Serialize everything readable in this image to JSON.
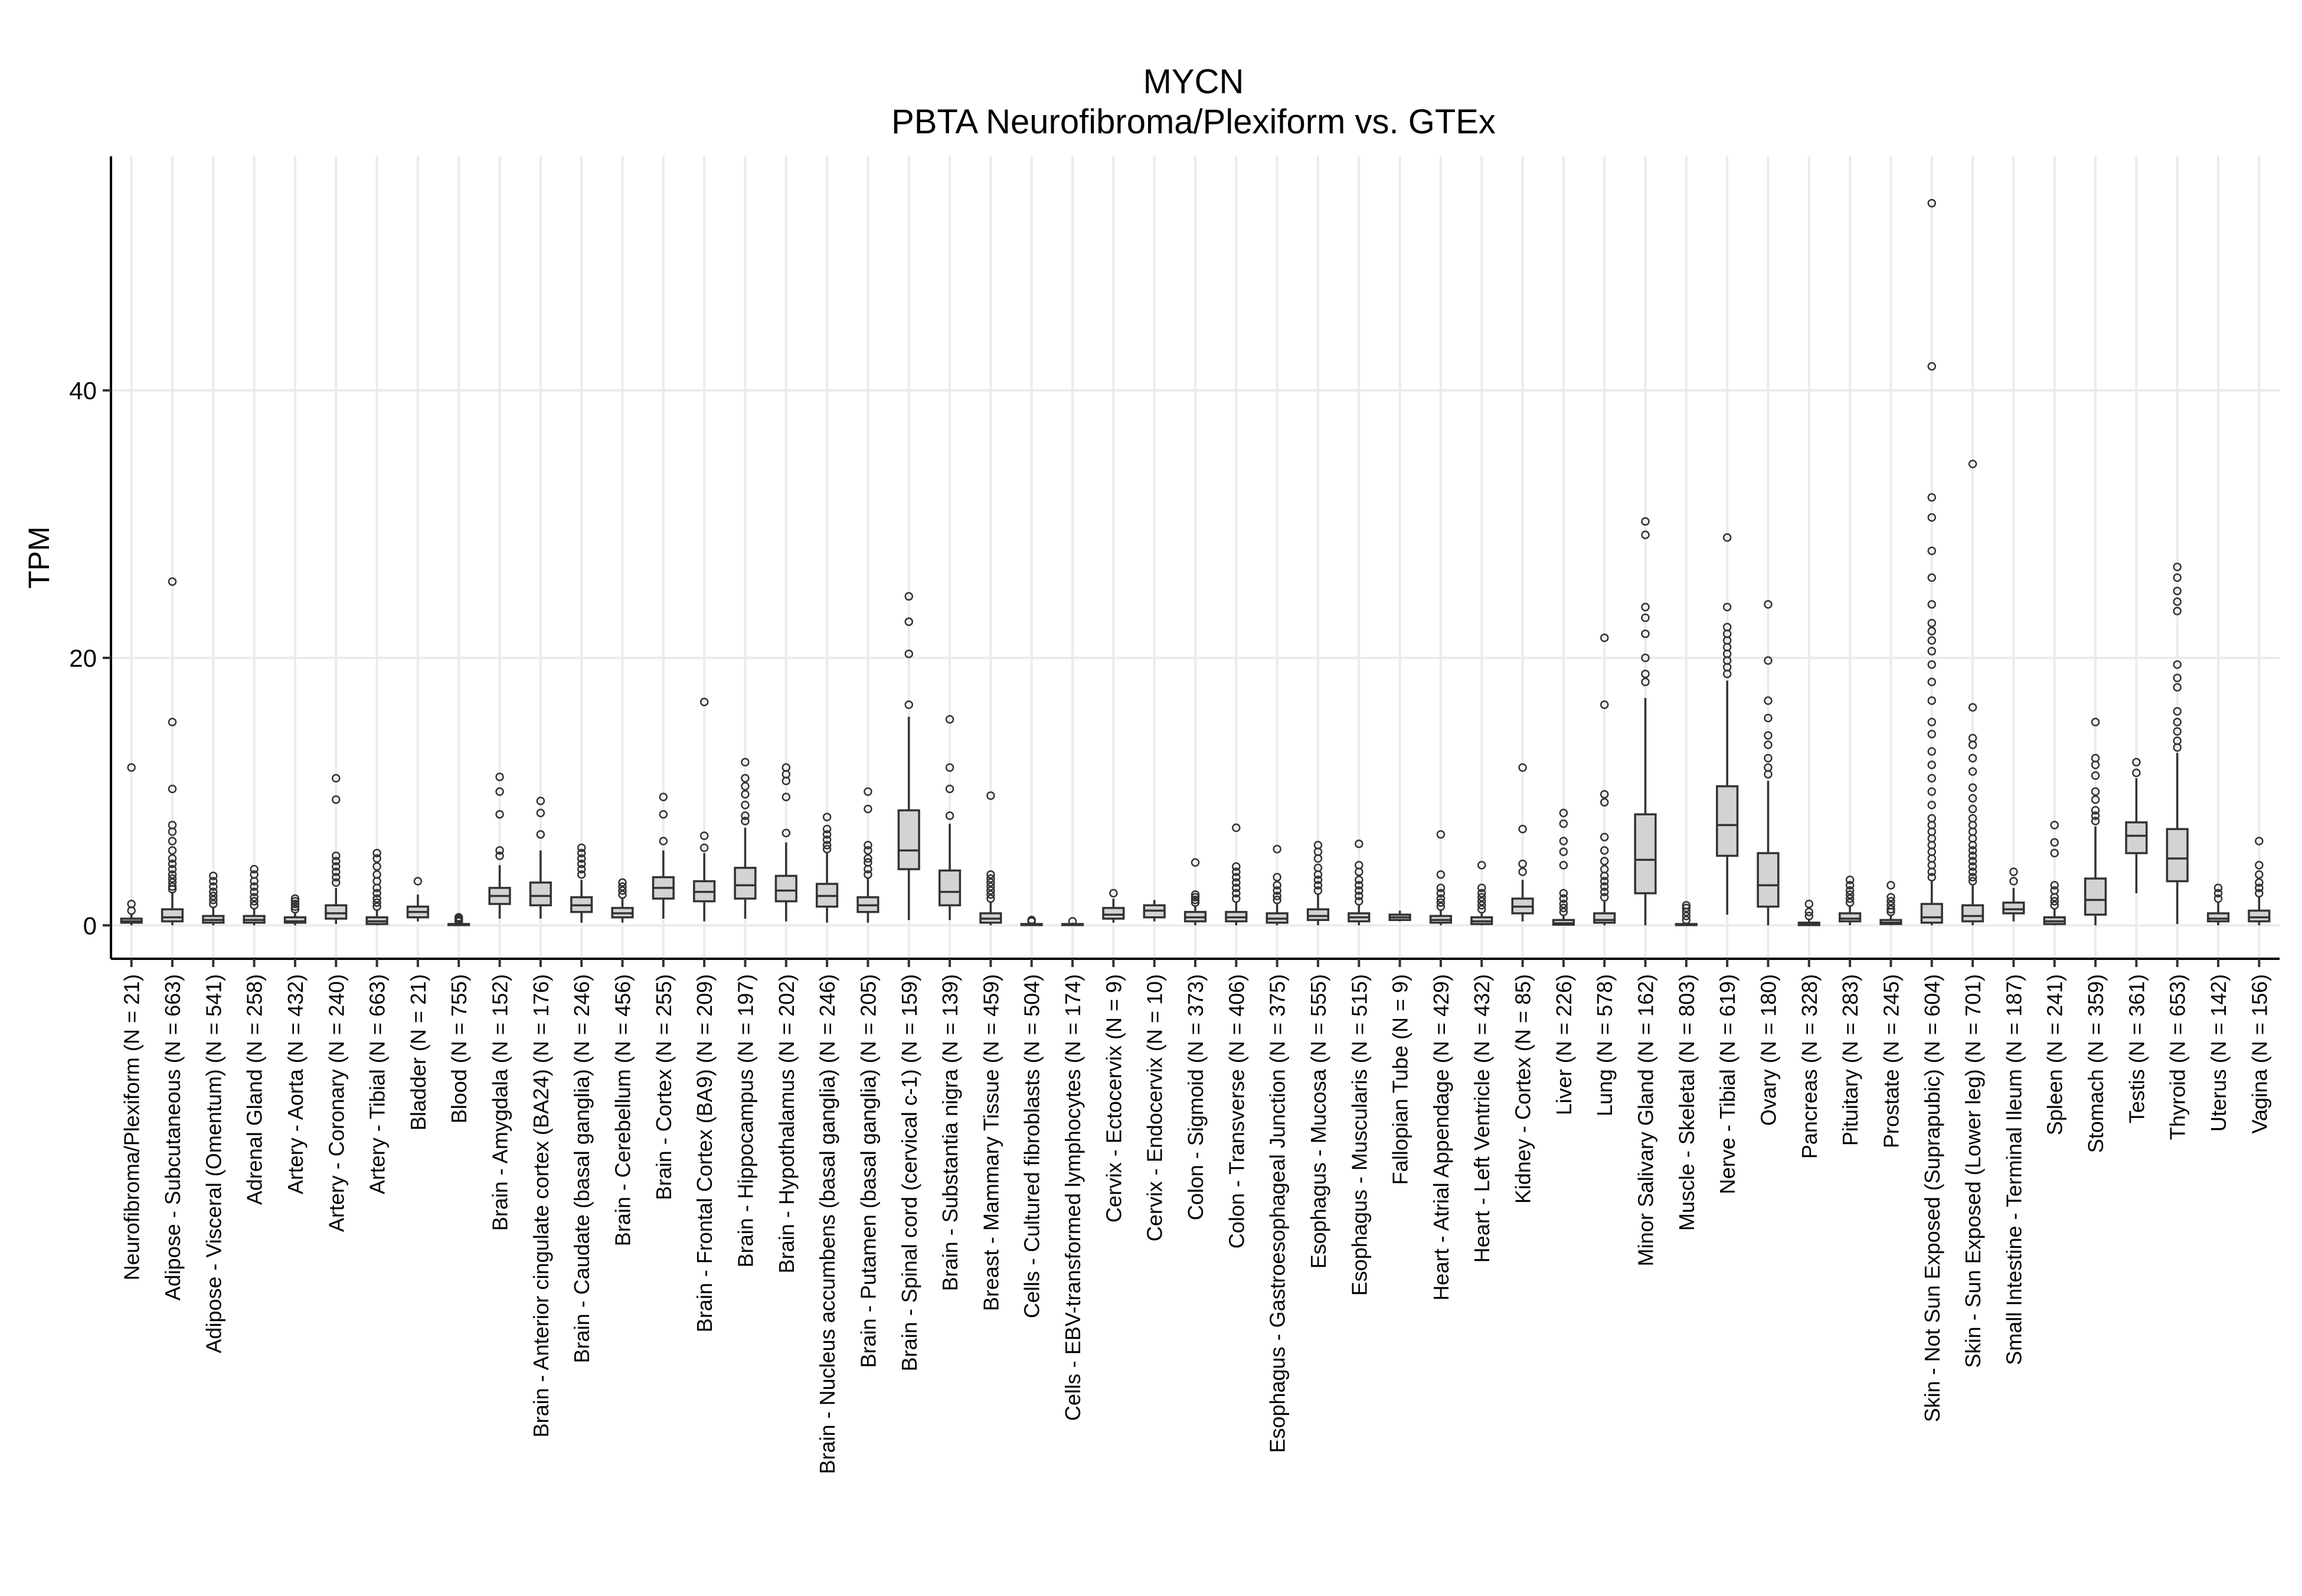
{
  "chart_data": {
    "type": "box",
    "title": "MYCN",
    "subtitle": "PBTA Neurofibroma/Plexiform vs. GTEx",
    "xlabel": "",
    "ylabel": "TPM",
    "ylim": [
      -2.5,
      57.5
    ],
    "yticks": [
      0,
      20,
      40
    ],
    "grid": true,
    "legend": "none",
    "box_fill": "#d3d3d3",
    "line_color": "#333333",
    "grid_color": "#ebebeb",
    "categories": [
      "Neurofibroma/Plexiform (N = 21)",
      "Adipose - Subcutaneous (N = 663)",
      "Adipose - Visceral (Omentum) (N = 541)",
      "Adrenal Gland (N = 258)",
      "Artery - Aorta (N = 432)",
      "Artery - Coronary (N = 240)",
      "Artery - Tibial (N = 663)",
      "Bladder (N = 21)",
      "Blood (N = 755)",
      "Brain - Amygdala (N = 152)",
      "Brain - Anterior cingulate cortex (BA24) (N = 176)",
      "Brain - Caudate (basal ganglia) (N = 246)",
      "Brain - Cerebellum (N = 456)",
      "Brain - Cortex (N = 255)",
      "Brain - Frontal Cortex (BA9) (N = 209)",
      "Brain - Hippocampus (N = 197)",
      "Brain - Hypothalamus (N = 202)",
      "Brain - Nucleus accumbens (basal ganglia) (N = 246)",
      "Brain - Putamen (basal ganglia) (N = 205)",
      "Brain - Spinal cord (cervical c-1) (N = 159)",
      "Brain - Substantia nigra (N = 139)",
      "Breast - Mammary Tissue (N = 459)",
      "Cells - Cultured fibroblasts (N = 504)",
      "Cells - EBV-transformed lymphocytes (N = 174)",
      "Cervix - Ectocervix (N = 9)",
      "Cervix - Endocervix (N = 10)",
      "Colon - Sigmoid (N = 373)",
      "Colon - Transverse (N = 406)",
      "Esophagus - Gastroesophageal Junction (N = 375)",
      "Esophagus - Mucosa (N = 555)",
      "Esophagus - Muscularis (N = 515)",
      "Fallopian Tube (N = 9)",
      "Heart - Atrial Appendage (N = 429)",
      "Heart - Left Ventricle (N = 432)",
      "Kidney - Cortex (N = 85)",
      "Liver (N = 226)",
      "Lung (N = 578)",
      "Minor Salivary Gland (N = 162)",
      "Muscle - Skeletal (N = 803)",
      "Nerve - Tibial (N = 619)",
      "Ovary (N = 180)",
      "Pancreas (N = 328)",
      "Pituitary (N = 283)",
      "Prostate (N = 245)",
      "Skin - Not Sun Exposed (Suprapubic) (N = 604)",
      "Skin - Sun Exposed (Lower leg) (N = 701)",
      "Small Intestine - Terminal Ileum (N = 187)",
      "Spleen (N = 241)",
      "Stomach (N = 359)",
      "Testis (N = 361)",
      "Thyroid (N = 653)",
      "Uterus (N = 142)",
      "Vagina (N = 156)"
    ],
    "boxes": [
      {
        "min": 0.0,
        "q1": 0.2,
        "median": 0.3,
        "q3": 0.5,
        "max": 0.9,
        "outliers": [
          1.1,
          1.6,
          11.8
        ]
      },
      {
        "min": 0.0,
        "q1": 0.3,
        "median": 0.6,
        "q3": 1.2,
        "max": 2.5,
        "outliers": [
          2.7,
          2.9,
          3.2,
          3.5,
          3.8,
          4.2,
          4.6,
          5.0,
          5.6,
          6.3,
          7.0,
          7.5,
          10.2,
          15.2,
          25.7
        ]
      },
      {
        "min": 0.0,
        "q1": 0.2,
        "median": 0.4,
        "q3": 0.7,
        "max": 1.4,
        "outliers": [
          1.6,
          1.9,
          2.2,
          2.5,
          2.9,
          3.3,
          3.7
        ]
      },
      {
        "min": 0.0,
        "q1": 0.2,
        "median": 0.4,
        "q3": 0.7,
        "max": 1.3,
        "outliers": [
          1.5,
          1.8,
          2.1,
          2.5,
          2.9,
          3.3,
          3.8,
          4.2
        ]
      },
      {
        "min": 0.0,
        "q1": 0.2,
        "median": 0.3,
        "q3": 0.6,
        "max": 1.0,
        "outliers": [
          1.2,
          1.4,
          1.6,
          1.8,
          2.0
        ]
      },
      {
        "min": 0.1,
        "q1": 0.5,
        "median": 0.9,
        "q3": 1.5,
        "max": 2.8,
        "outliers": [
          3.2,
          3.6,
          4.0,
          4.4,
          4.8,
          5.2,
          9.4,
          11.0
        ]
      },
      {
        "min": 0.0,
        "q1": 0.1,
        "median": 0.3,
        "q3": 0.6,
        "max": 1.2,
        "outliers": [
          1.4,
          1.7,
          2.0,
          2.4,
          2.8,
          3.3,
          3.8,
          4.4,
          5.0,
          5.4
        ]
      },
      {
        "min": 0.3,
        "q1": 0.6,
        "median": 1.0,
        "q3": 1.4,
        "max": 2.3,
        "outliers": [
          3.3
        ]
      },
      {
        "min": 0.0,
        "q1": 0.02,
        "median": 0.05,
        "q3": 0.1,
        "max": 0.2,
        "outliers": [
          0.3,
          0.4,
          0.5,
          0.6
        ]
      },
      {
        "min": 0.5,
        "q1": 1.6,
        "median": 2.2,
        "q3": 2.8,
        "max": 4.5,
        "outliers": [
          5.2,
          5.6,
          8.3,
          10.0,
          11.1
        ]
      },
      {
        "min": 0.5,
        "q1": 1.5,
        "median": 2.2,
        "q3": 3.2,
        "max": 5.6,
        "outliers": [
          6.8,
          8.4,
          9.3
        ]
      },
      {
        "min": 0.2,
        "q1": 1.0,
        "median": 1.5,
        "q3": 2.1,
        "max": 3.4,
        "outliers": [
          3.8,
          4.2,
          4.6,
          5.0,
          5.4,
          5.8
        ]
      },
      {
        "min": 0.2,
        "q1": 0.6,
        "median": 0.9,
        "q3": 1.3,
        "max": 2.0,
        "outliers": [
          2.3,
          2.6,
          2.9,
          3.2
        ]
      },
      {
        "min": 0.5,
        "q1": 2.0,
        "median": 2.8,
        "q3": 3.6,
        "max": 5.6,
        "outliers": [
          6.3,
          8.3,
          9.6
        ]
      },
      {
        "min": 0.3,
        "q1": 1.8,
        "median": 2.5,
        "q3": 3.3,
        "max": 5.4,
        "outliers": [
          5.8,
          6.7,
          16.7
        ]
      },
      {
        "min": 0.5,
        "q1": 2.0,
        "median": 3.0,
        "q3": 4.3,
        "max": 7.3,
        "outliers": [
          7.8,
          8.2,
          9.0,
          9.8,
          10.4,
          11.0,
          12.2
        ]
      },
      {
        "min": 0.3,
        "q1": 1.8,
        "median": 2.6,
        "q3": 3.7,
        "max": 6.2,
        "outliers": [
          6.9,
          9.6,
          10.8,
          11.3,
          11.8
        ]
      },
      {
        "min": 0.2,
        "q1": 1.4,
        "median": 2.2,
        "q3": 3.1,
        "max": 5.4,
        "outliers": [
          5.7,
          6.0,
          6.4,
          6.8,
          7.2,
          8.1
        ]
      },
      {
        "min": 0.2,
        "q1": 1.0,
        "median": 1.5,
        "q3": 2.1,
        "max": 3.5,
        "outliers": [
          3.8,
          4.2,
          4.7,
          5.0,
          5.6,
          6.0,
          8.7,
          10.0
        ]
      },
      {
        "min": 0.4,
        "q1": 4.2,
        "median": 5.6,
        "q3": 8.6,
        "max": 15.6,
        "outliers": [
          16.5,
          20.3,
          22.7,
          24.6
        ]
      },
      {
        "min": 0.4,
        "q1": 1.5,
        "median": 2.5,
        "q3": 4.1,
        "max": 7.6,
        "outliers": [
          8.2,
          10.2,
          11.8,
          15.4
        ]
      },
      {
        "min": 0.0,
        "q1": 0.2,
        "median": 0.5,
        "q3": 0.9,
        "max": 1.8,
        "outliers": [
          2.0,
          2.3,
          2.6,
          2.9,
          3.2,
          3.5,
          3.8,
          9.7
        ]
      },
      {
        "min": 0.0,
        "q1": 0.02,
        "median": 0.05,
        "q3": 0.1,
        "max": 0.2,
        "outliers": [
          0.3,
          0.4
        ]
      },
      {
        "min": 0.0,
        "q1": 0.02,
        "median": 0.05,
        "q3": 0.1,
        "max": 0.2,
        "outliers": [
          0.3
        ]
      },
      {
        "min": 0.2,
        "q1": 0.5,
        "median": 0.8,
        "q3": 1.3,
        "max": 2.0,
        "outliers": [
          2.4
        ]
      },
      {
        "min": 0.3,
        "q1": 0.6,
        "median": 1.1,
        "q3": 1.5,
        "max": 1.9,
        "outliers": []
      },
      {
        "min": 0.0,
        "q1": 0.3,
        "median": 0.6,
        "q3": 1.0,
        "max": 1.5,
        "outliers": [
          1.7,
          1.9,
          2.1,
          2.3,
          4.7
        ]
      },
      {
        "min": 0.0,
        "q1": 0.3,
        "median": 0.6,
        "q3": 1.0,
        "max": 1.7,
        "outliers": [
          2.0,
          2.4,
          2.8,
          3.2,
          3.6,
          4.0,
          4.4,
          7.3
        ]
      },
      {
        "min": 0.0,
        "q1": 0.2,
        "median": 0.5,
        "q3": 0.9,
        "max": 1.6,
        "outliers": [
          1.9,
          2.2,
          2.6,
          3.0,
          3.6,
          5.7
        ]
      },
      {
        "min": 0.0,
        "q1": 0.4,
        "median": 0.7,
        "q3": 1.2,
        "max": 2.3,
        "outliers": [
          2.6,
          3.0,
          3.4,
          3.8,
          4.3,
          5.0,
          5.5,
          6.0
        ]
      },
      {
        "min": 0.0,
        "q1": 0.3,
        "median": 0.6,
        "q3": 0.9,
        "max": 1.5,
        "outliers": [
          1.8,
          2.2,
          2.6,
          3.0,
          3.4,
          4.0,
          4.5,
          6.1
        ]
      },
      {
        "min": 0.3,
        "q1": 0.4,
        "median": 0.6,
        "q3": 0.8,
        "max": 1.1,
        "outliers": []
      },
      {
        "min": 0.0,
        "q1": 0.2,
        "median": 0.4,
        "q3": 0.7,
        "max": 1.2,
        "outliers": [
          1.4,
          1.7,
          2.0,
          2.4,
          2.8,
          3.8,
          6.8
        ]
      },
      {
        "min": 0.0,
        "q1": 0.1,
        "median": 0.3,
        "q3": 0.6,
        "max": 1.0,
        "outliers": [
          1.2,
          1.5,
          1.8,
          2.1,
          2.4,
          2.8,
          4.5
        ]
      },
      {
        "min": 0.3,
        "q1": 0.9,
        "median": 1.4,
        "q3": 2.0,
        "max": 3.4,
        "outliers": [
          4.0,
          4.6,
          7.2,
          11.8
        ]
      },
      {
        "min": 0.0,
        "q1": 0.05,
        "median": 0.15,
        "q3": 0.4,
        "max": 0.8,
        "outliers": [
          1.0,
          1.3,
          1.6,
          2.0,
          2.4,
          4.5,
          5.5,
          6.3,
          7.6,
          8.4
        ]
      },
      {
        "min": 0.0,
        "q1": 0.2,
        "median": 0.4,
        "q3": 0.9,
        "max": 1.8,
        "outliers": [
          2.1,
          2.5,
          2.9,
          3.3,
          3.7,
          4.2,
          4.8,
          5.6,
          6.6,
          9.2,
          9.8,
          16.5,
          21.5
        ]
      },
      {
        "min": 0.0,
        "q1": 2.4,
        "median": 4.9,
        "q3": 8.3,
        "max": 17.0,
        "outliers": [
          18.2,
          18.8,
          20.0,
          21.8,
          23.0,
          23.8,
          29.2,
          30.2
        ]
      },
      {
        "min": 0.0,
        "q1": 0.02,
        "median": 0.05,
        "q3": 0.1,
        "max": 0.2,
        "outliers": [
          0.4,
          0.7,
          1.0,
          1.3,
          1.5
        ]
      },
      {
        "min": 0.8,
        "q1": 5.2,
        "median": 7.5,
        "q3": 10.4,
        "max": 18.3,
        "outliers": [
          18.8,
          19.3,
          19.8,
          20.3,
          20.8,
          21.3,
          21.8,
          22.3,
          23.8,
          29.0
        ]
      },
      {
        "min": 0.0,
        "q1": 1.4,
        "median": 3.0,
        "q3": 5.4,
        "max": 10.8,
        "outliers": [
          11.3,
          11.8,
          12.5,
          13.5,
          14.2,
          15.5,
          16.8,
          19.8,
          24.0
        ]
      },
      {
        "min": 0.0,
        "q1": 0.02,
        "median": 0.08,
        "q3": 0.2,
        "max": 0.5,
        "outliers": [
          0.7,
          1.0,
          1.6
        ]
      },
      {
        "min": 0.0,
        "q1": 0.3,
        "median": 0.5,
        "q3": 0.9,
        "max": 1.5,
        "outliers": [
          1.7,
          2.0,
          2.3,
          2.6,
          3.0,
          3.4
        ]
      },
      {
        "min": 0.0,
        "q1": 0.1,
        "median": 0.2,
        "q3": 0.4,
        "max": 0.8,
        "outliers": [
          1.0,
          1.2,
          1.5,
          1.8,
          2.1,
          3.0
        ]
      },
      {
        "min": 0.0,
        "q1": 0.2,
        "median": 0.6,
        "q3": 1.6,
        "max": 3.3,
        "outliers": [
          3.6,
          4.0,
          4.5,
          5.0,
          5.5,
          6.0,
          6.5,
          7.0,
          7.5,
          8.0,
          9.0,
          10.0,
          11.0,
          12.0,
          13.0,
          14.3,
          15.2,
          16.8,
          18.2,
          19.5,
          20.5,
          21.3,
          22.0,
          22.6,
          24.0,
          26.0,
          28.0,
          30.5,
          32.0,
          41.8,
          54.0
        ]
      },
      {
        "min": 0.0,
        "q1": 0.3,
        "median": 0.7,
        "q3": 1.5,
        "max": 3.0,
        "outliers": [
          3.3,
          3.6,
          4.0,
          4.4,
          4.8,
          5.2,
          5.6,
          6.0,
          6.5,
          7.0,
          7.5,
          8.0,
          8.7,
          9.5,
          10.3,
          11.5,
          12.5,
          13.5,
          14.0,
          16.3,
          34.5
        ]
      },
      {
        "min": 0.3,
        "q1": 0.9,
        "median": 1.2,
        "q3": 1.7,
        "max": 2.8,
        "outliers": [
          3.3,
          4.0
        ]
      },
      {
        "min": 0.0,
        "q1": 0.1,
        "median": 0.3,
        "q3": 0.6,
        "max": 1.2,
        "outliers": [
          1.5,
          1.8,
          2.1,
          2.6,
          3.0,
          5.4,
          6.2,
          7.5
        ]
      },
      {
        "min": 0.0,
        "q1": 0.8,
        "median": 1.9,
        "q3": 3.5,
        "max": 7.4,
        "outliers": [
          7.8,
          8.2,
          8.6,
          9.4,
          10.0,
          11.2,
          12.0,
          12.5,
          15.2
        ]
      },
      {
        "min": 2.4,
        "q1": 5.4,
        "median": 6.7,
        "q3": 7.7,
        "max": 11.0,
        "outliers": [
          11.4,
          12.2
        ]
      },
      {
        "min": 0.1,
        "q1": 3.3,
        "median": 5.0,
        "q3": 7.2,
        "max": 12.9,
        "outliers": [
          13.3,
          13.8,
          14.5,
          15.2,
          16.0,
          17.8,
          18.5,
          19.5,
          23.5,
          24.2,
          25.0,
          26.0,
          26.8
        ]
      },
      {
        "min": 0.0,
        "q1": 0.3,
        "median": 0.5,
        "q3": 0.9,
        "max": 1.7,
        "outliers": [
          2.0,
          2.4,
          2.8
        ]
      },
      {
        "min": 0.0,
        "q1": 0.3,
        "median": 0.6,
        "q3": 1.1,
        "max": 2.1,
        "outliers": [
          2.4,
          2.8,
          3.2,
          3.8,
          4.5,
          6.3
        ]
      }
    ]
  }
}
